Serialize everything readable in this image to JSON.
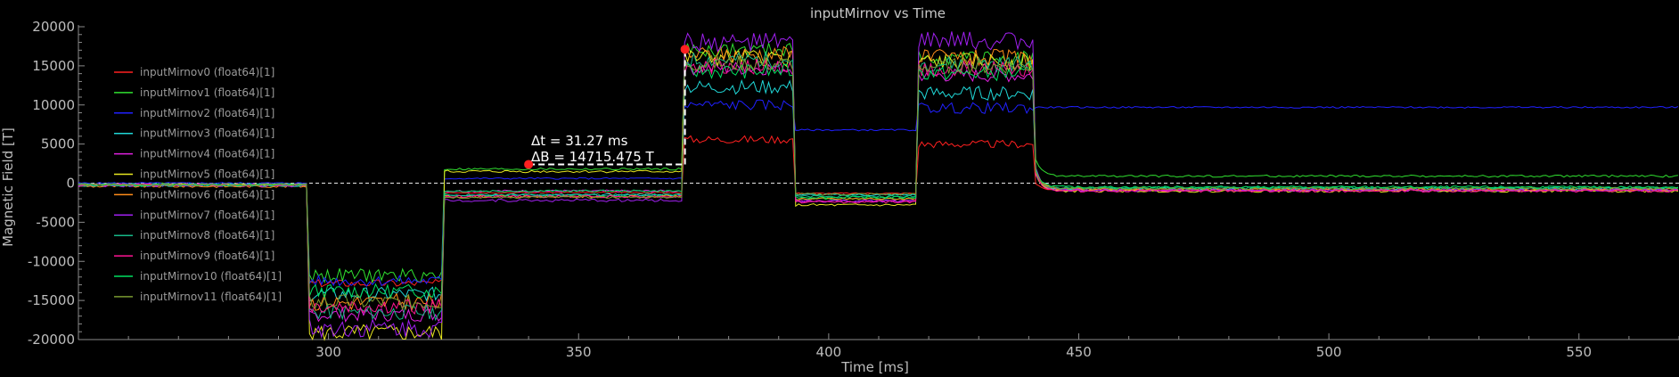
{
  "chart_data": {
    "type": "line",
    "title": "inputMirnov vs Time",
    "xlabel": "Time [ms]",
    "ylabel": "Magnetic Field [T]",
    "xlim": [
      250,
      570
    ],
    "ylim": [
      -20000,
      20000
    ],
    "x_ticks": [
      300,
      350,
      400,
      450,
      500,
      550
    ],
    "y_ticks": [
      20000,
      15000,
      10000,
      5000,
      0,
      -5000,
      -10000,
      -15000,
      -20000
    ],
    "grid": false,
    "legend_position": "top-left",
    "zero_line": true,
    "annotation": {
      "dt_text": "Δt = 31.27 ms",
      "db_text": "ΔB = 14715.475 T",
      "p1": {
        "x": 340.0,
        "y": 2400
      },
      "p2": {
        "x": 371.27,
        "y": 17115
      }
    },
    "series": [
      {
        "name": "inputMirnov0 (float64)[1]",
        "color": "#ff2020",
        "phases": [
          -200,
          -12800,
          -1200,
          5600,
          -1300,
          5000,
          -900
        ],
        "noise": 500
      },
      {
        "name": "inputMirnov1 (float64)[1]",
        "color": "#30e030",
        "phases": [
          -100,
          -11800,
          1800,
          17000,
          -2000,
          16000,
          900
        ],
        "noise": 900
      },
      {
        "name": "inputMirnov2 (float64)[1]",
        "color": "#2020ff",
        "phases": [
          0,
          -12500,
          600,
          10000,
          6800,
          9600,
          9700
        ],
        "noise": 700
      },
      {
        "name": "inputMirnov3 (float64)[1]",
        "color": "#20d8d8",
        "phases": [
          -200,
          -14200,
          -1500,
          12300,
          -1500,
          11500,
          -700
        ],
        "noise": 900
      },
      {
        "name": "inputMirnov4 (float64)[1]",
        "color": "#e020e0",
        "phases": [
          -300,
          -16800,
          -1000,
          14700,
          -2300,
          13800,
          -900
        ],
        "noise": 900
      },
      {
        "name": "inputMirnov5 (float64)[1]",
        "color": "#e8e820",
        "phases": [
          -200,
          -19200,
          1500,
          16000,
          -2800,
          15500,
          -1000
        ],
        "noise": 1100
      },
      {
        "name": "inputMirnov6 (float64)[1]",
        "color": "#ff8c1a",
        "phases": [
          -400,
          -15200,
          -1700,
          16500,
          -2000,
          16000,
          -800
        ],
        "noise": 1100
      },
      {
        "name": "inputMirnov7 (float64)[1]",
        "color": "#a020f0",
        "phases": [
          -300,
          -18500,
          -2200,
          18000,
          -2300,
          18200,
          -900
        ],
        "noise": 1200
      },
      {
        "name": "inputMirnov8 (float64)[1]",
        "color": "#16b887",
        "phases": [
          -300,
          -16500,
          -1500,
          15800,
          -1700,
          15300,
          -600
        ],
        "noise": 1000
      },
      {
        "name": "inputMirnov9 (float64)[1]",
        "color": "#ff1493",
        "phases": [
          -200,
          -15800,
          -1700,
          14900,
          -2400,
          14600,
          -1000
        ],
        "noise": 1000
      },
      {
        "name": "inputMirnov10 (float64)[1]",
        "color": "#00e060",
        "phases": [
          -200,
          -13800,
          -1000,
          14300,
          -1800,
          14000,
          -500
        ],
        "noise": 900
      },
      {
        "name": "inputMirnov11 (float64)[1]",
        "color": "#7a9a30",
        "phases": [
          -200,
          -15200,
          -1800,
          15300,
          -1400,
          15000,
          -700
        ],
        "noise": 1000
      }
    ],
    "phase_breaks_ms": [
      296,
      323,
      371,
      393,
      418,
      441
    ]
  }
}
